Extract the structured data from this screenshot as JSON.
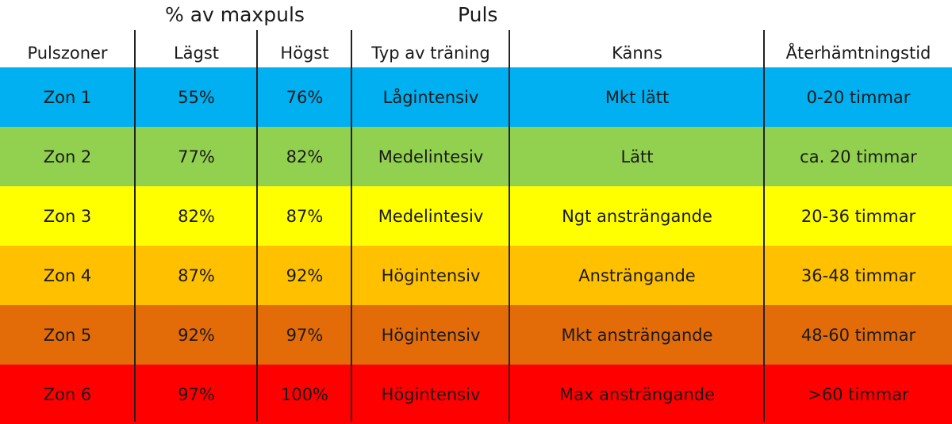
{
  "titles": {
    "percent_max": "% av maxpuls",
    "puls": "Puls"
  },
  "headers": [
    "Pulszoner",
    "Lägst",
    "Högst",
    "Typ av träning",
    "Känns",
    "Återhämtningstid"
  ],
  "rows": [
    {
      "color": "#00b0f0",
      "cells": [
        "Zon 1",
        "55%",
        "76%",
        "Lågintensiv",
        "Mkt lätt",
        "0-20 timmar"
      ]
    },
    {
      "color": "#92d050",
      "cells": [
        "Zon 2",
        "77%",
        "82%",
        "Medelintesiv",
        "Lätt",
        "ca. 20 timmar"
      ]
    },
    {
      "color": "#ffff00",
      "cells": [
        "Zon 3",
        "82%",
        "87%",
        "Medelintesiv",
        "Ngt ansträngande",
        "20-36 timmar"
      ]
    },
    {
      "color": "#ffc000",
      "cells": [
        "Zon 4",
        "87%",
        "92%",
        "Högintensiv",
        "Ansträngande",
        "36-48 timmar"
      ]
    },
    {
      "color": "#e36c09",
      "cells": [
        "Zon 5",
        "92%",
        "97%",
        "Högintensiv",
        "Mkt ansträngande",
        "48-60 timmar"
      ]
    },
    {
      "color": "#ff0000",
      "cells": [
        "Zon 6",
        "97%",
        "100%",
        "Högintensiv",
        "Max ansträngande",
        ">60 timmar"
      ]
    }
  ]
}
